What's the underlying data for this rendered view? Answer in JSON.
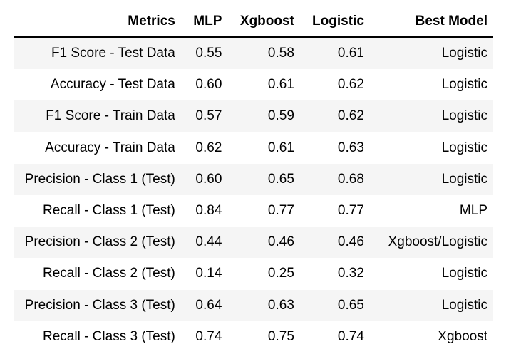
{
  "table": {
    "columns": [
      "Metrics",
      "MLP",
      "Xgboost",
      "Logistic",
      "Best Model"
    ],
    "rows": [
      [
        "F1 Score - Test Data",
        "0.55",
        "0.58",
        "0.61",
        "Logistic"
      ],
      [
        "Accuracy - Test Data",
        "0.60",
        "0.61",
        "0.62",
        "Logistic"
      ],
      [
        "F1 Score - Train Data",
        "0.57",
        "0.59",
        "0.62",
        "Logistic"
      ],
      [
        "Accuracy - Train Data",
        "0.62",
        "0.61",
        "0.63",
        "Logistic"
      ],
      [
        "Precision - Class 1 (Test)",
        "0.60",
        "0.65",
        "0.68",
        "Logistic"
      ],
      [
        "Recall - Class 1 (Test)",
        "0.84",
        "0.77",
        "0.77",
        "MLP"
      ],
      [
        "Precision - Class 2 (Test)",
        "0.44",
        "0.46",
        "0.46",
        "Xgboost/Logistic"
      ],
      [
        "Recall - Class 2 (Test)",
        "0.14",
        "0.25",
        "0.32",
        "Logistic"
      ],
      [
        "Precision - Class 3 (Test)",
        "0.64",
        "0.63",
        "0.65",
        "Logistic"
      ],
      [
        "Recall - Class 3 (Test)",
        "0.74",
        "0.75",
        "0.74",
        "Xgboost"
      ]
    ]
  },
  "colors": {
    "stripe": "#f5f5f5",
    "header_rule": "#000000",
    "text": "#000000"
  }
}
